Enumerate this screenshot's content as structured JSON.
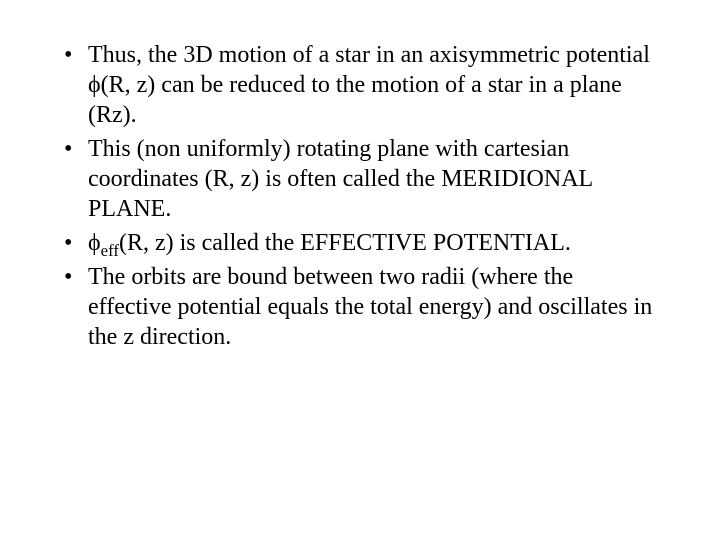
{
  "slide": {
    "text_color": "#000000",
    "background_color": "#ffffff",
    "font_family": "Times New Roman",
    "font_size_pt": 24,
    "bullets": [
      {
        "pre": "Thus, the 3D motion of a star in an axisymmetric potential ",
        "sym1": "ϕ",
        "mid1": "(R, z) can be reduced to the motion of a star in a plane (Rz)."
      },
      {
        "text": "This (non uniformly) rotating plane with cartesian coordinates (R, z) is often called the MERIDIONAL PLANE."
      },
      {
        "sym1": "ϕ",
        "sub1": "eff",
        "mid1": "(R, z) is called the EFFECTIVE POTENTIAL."
      },
      {
        "text": "The orbits are bound between two radii (where the effective potential equals the total energy) and oscillates in the z direction."
      }
    ]
  }
}
